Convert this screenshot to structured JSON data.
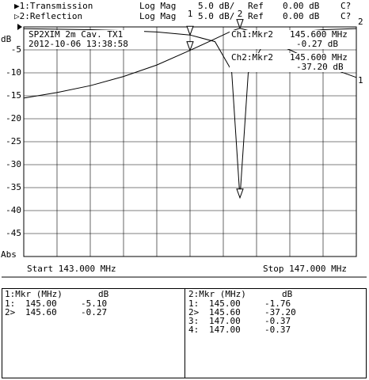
{
  "header": {
    "rows": [
      [
        "▶1:Transmission",
        "Log Mag",
        "5.0 dB/",
        "Ref",
        "0.00 dB",
        "C?"
      ],
      [
        "▷2:Reflection",
        "Log Mag",
        "5.0 dB/",
        "Ref",
        "0.00 dB",
        "C?"
      ]
    ]
  },
  "chart_data": {
    "type": "line",
    "ylabel": "dB",
    "y_unit_label": "Abs",
    "annotations": [
      "SP2XIM 2m Cav. TX1",
      "2012-10-06 13:38:58"
    ],
    "readouts": [
      [
        "Ch1:Mkr2",
        "145.600 MHz",
        "-0.27 dB"
      ],
      [
        "Ch2:Mkr2",
        "145.600 MHz",
        "-37.20 dB"
      ]
    ],
    "start_label": "Start 143.000 MHz",
    "stop_label": "Stop 147.000 MHz",
    "xlim": [
      143,
      147
    ],
    "ylim": [
      -50,
      0
    ],
    "yticks": [
      -5,
      -10,
      -15,
      -20,
      -25,
      -30,
      -35,
      -40,
      -45
    ],
    "grid": true,
    "x": [
      143,
      143.4,
      143.8,
      144.2,
      144.6,
      145.0,
      145.3,
      145.5,
      145.6,
      145.7,
      145.9,
      146.2,
      146.6,
      147
    ],
    "series": [
      {
        "name": "Transmission",
        "end_label": "1",
        "color": "#000000",
        "values": [
          -15.5,
          -14.3,
          -12.8,
          -10.8,
          -8.3,
          -5.1,
          -2.6,
          -0.9,
          -0.27,
          -0.8,
          -2.6,
          -5.0,
          -8.4,
          -11.0
        ]
      },
      {
        "name": "Reflection",
        "end_label": "2",
        "color": "#000000",
        "values": [
          -0.4,
          -0.5,
          -0.6,
          -0.8,
          -1.1,
          -1.76,
          -3.2,
          -9.5,
          -37.2,
          -10.0,
          -3.0,
          -1.2,
          -0.6,
          -0.37
        ]
      }
    ],
    "markers": [
      {
        "label": "1",
        "x": 145.0
      },
      {
        "label": "2",
        "x": 145.6
      }
    ]
  },
  "tables": [
    {
      "header": [
        "1:Mkr (MHz)",
        "dB"
      ],
      "rows": [
        [
          "1:",
          "145.00",
          "-5.10"
        ],
        [
          "2>",
          "145.60",
          "-0.27"
        ]
      ]
    },
    {
      "header": [
        "2:Mkr (MHz)",
        "dB"
      ],
      "rows": [
        [
          "1:",
          "145.00",
          "-1.76"
        ],
        [
          "2>",
          "145.60",
          "-37.20"
        ],
        [
          "3:",
          "147.00",
          "-0.37"
        ],
        [
          "4:",
          "147.00",
          "-0.37"
        ]
      ]
    }
  ]
}
